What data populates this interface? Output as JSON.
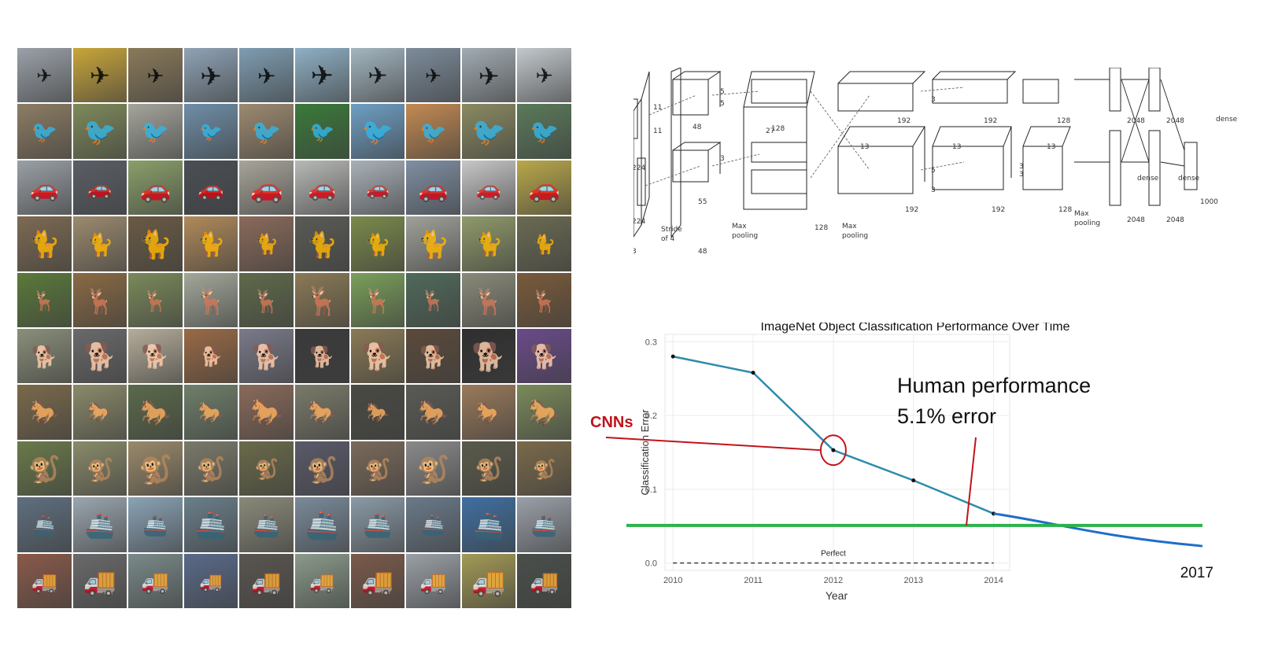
{
  "image_grid": {
    "rows": [
      {
        "category": "airplane",
        "icon": "airplane-icon",
        "glyph": "✈",
        "tones": [
          "#9aa1a8",
          "#c9a63a",
          "#8a7a5a",
          "#8fa3b6",
          "#7f9db2",
          "#8fb0c4",
          "#a3b6c0",
          "#7d8c9b",
          "#a2acb3",
          "#c2c8cc"
        ]
      },
      {
        "category": "bird",
        "icon": "bird-icon",
        "glyph": "🐦",
        "tones": [
          "#8d7d64",
          "#7e8a5a",
          "#a5a59c",
          "#6f8ea8",
          "#9d8a70",
          "#3a7a3a",
          "#6e9fc4",
          "#c48a52",
          "#8a8a62",
          "#5a7a5a"
        ]
      },
      {
        "category": "car",
        "icon": "car-icon",
        "glyph": "🚗",
        "tones": [
          "#9aa0a6",
          "#5a5f66",
          "#8aa06a",
          "#4a4f55",
          "#a8a49a",
          "#b7b9b6",
          "#a9b1b8",
          "#7f8fa3",
          "#c7c7c7",
          "#b9a84a"
        ]
      },
      {
        "category": "cat",
        "icon": "cat-icon",
        "glyph": "🐈",
        "tones": [
          "#7d6a52",
          "#9b8a6e",
          "#6a5a44",
          "#b08a5a",
          "#8a6a5a",
          "#5a5a55",
          "#7a8a4a",
          "#a0a19a",
          "#8f9a6a",
          "#6a6a52"
        ]
      },
      {
        "category": "deer",
        "icon": "deer-icon",
        "glyph": "🦌",
        "tones": [
          "#5a7a3a",
          "#8a6a44",
          "#7a8a5a",
          "#a3a89a",
          "#5f6a4a",
          "#8a7a55",
          "#7aa05a",
          "#4f6a5a",
          "#8a8a7a",
          "#7a5a3a"
        ]
      },
      {
        "category": "dog",
        "icon": "dog-icon",
        "glyph": "🐕",
        "tones": [
          "#8a8f7a",
          "#6a6a6a",
          "#b5ad9a",
          "#9a6a44",
          "#7a7a8a",
          "#3a3a3a",
          "#8a7a55",
          "#5a4a3a",
          "#2f2f2f",
          "#6a4a8a"
        ]
      },
      {
        "category": "horse",
        "icon": "horse-icon",
        "glyph": "🐎",
        "tones": [
          "#7a6a4a",
          "#8a8a6a",
          "#5a6a4a",
          "#6f7f6a",
          "#8a6a5a",
          "#7a7a6a",
          "#4a4a44",
          "#5a5a55",
          "#9a7a5a",
          "#7a8a5a"
        ]
      },
      {
        "category": "monkey",
        "icon": "monkey-icon",
        "glyph": "🐒",
        "tones": [
          "#6a7a4a",
          "#8a8a6a",
          "#9a8a6a",
          "#7a7a6a",
          "#6a6a4a",
          "#5a5a6a",
          "#7a6a5a",
          "#8a8a8a",
          "#5a5a4a",
          "#7a6a4a"
        ]
      },
      {
        "category": "ship",
        "icon": "ship-icon",
        "glyph": "🚢",
        "tones": [
          "#5f6f7f",
          "#9aa6ae",
          "#8aa3b5",
          "#6a7f8a",
          "#8a8a7a",
          "#7a8a9a",
          "#8a9aa6",
          "#6a7a8a",
          "#3f6fa0",
          "#9aa0a8"
        ]
      },
      {
        "category": "truck",
        "icon": "truck-icon",
        "glyph": "🚚",
        "tones": [
          "#8a5a4a",
          "#6a6a6a",
          "#7a8a8a",
          "#5a6a8a",
          "#5a5550",
          "#8a9a8a",
          "#7a5a4a",
          "#9aa0a6",
          "#a39a55",
          "#4a4f4a"
        ]
      }
    ]
  },
  "architecture": {
    "labels": [
      "11",
      "11",
      "224",
      "224",
      "3",
      "5",
      "5",
      "55",
      "27",
      "48",
      "128",
      "192",
      "192",
      "128",
      "13",
      "13",
      "13",
      "5",
      "3",
      "3",
      "3",
      "3",
      "3",
      "2048",
      "2048",
      "2048",
      "2048",
      "1000",
      "48",
      "128",
      "192",
      "192",
      "128",
      "dense",
      "dense",
      "dense",
      "Stride",
      "of 4",
      "Max",
      "pooling",
      "Max",
      "pooling",
      "Max",
      "pooling"
    ]
  },
  "chart_data": {
    "type": "line",
    "title": "ImageNet Object Classification Performance Over Time",
    "xlabel": "Year",
    "ylabel": "Classification Error",
    "xlim": [
      2009.9,
      2014.2
    ],
    "ylim": [
      -0.01,
      0.31
    ],
    "x_ticks": [
      2010,
      2011,
      2012,
      2013,
      2014
    ],
    "y_ticks": [
      0.0,
      0.1,
      0.2,
      0.3
    ],
    "x_tick_labels": [
      "2010",
      "2011",
      "2012",
      "2013",
      "2014"
    ],
    "y_tick_labels": [
      "0.0",
      "0.1",
      "0.2",
      "0.3"
    ],
    "grid": true,
    "series": [
      {
        "x": [
          2010,
          2011,
          2012,
          2013,
          2014
        ],
        "y": [
          0.28,
          0.258,
          0.153,
          0.112,
          0.067
        ],
        "color": "#2e8bab"
      }
    ],
    "extension": {
      "x_label": "2017",
      "end_y": 0.023,
      "color": "#1f6fc8"
    },
    "baseline": {
      "label": "Perfect",
      "y": 0.0
    },
    "human_performance": {
      "y": 0.051,
      "color": "#2bb24c"
    },
    "annotations": {
      "cnns_label": "CNNs",
      "cnns_color": "#c0141a",
      "highlight_x": 2012,
      "human_line1": "Human performance",
      "human_line2": "5.1% error"
    }
  }
}
